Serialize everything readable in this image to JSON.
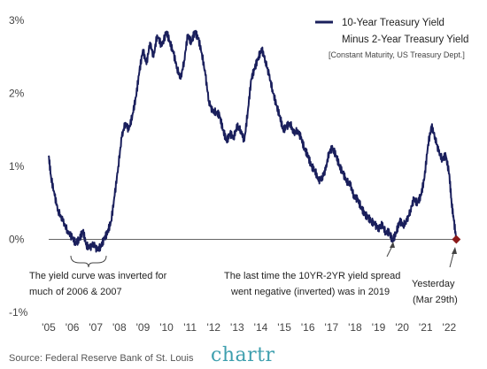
{
  "chart_data": {
    "type": "line",
    "legend": {
      "series_label_line1": "10-Year Treasury Yield",
      "series_label_line2": "Minus 2-Year Treasury Yield",
      "note": "[Constant Maturity, US Treasury Dept.]",
      "placement": "top-right"
    },
    "y_ticks": [
      "3%",
      "2%",
      "1%",
      "0%",
      "-1%"
    ],
    "y_tick_values": [
      3,
      2,
      1,
      0,
      -1
    ],
    "ylim": [
      -1.0,
      3.1
    ],
    "xlim": [
      2005.0,
      2022.4
    ],
    "x_ticks": [
      "'05",
      "'06",
      "'07",
      "'08",
      "'09",
      "'10",
      "'11",
      "'12",
      "'13",
      "'14",
      "'15",
      "'16",
      "'17",
      "'18",
      "'19",
      "'20",
      "'21",
      "'22"
    ],
    "x_tick_values": [
      2005,
      2006,
      2007,
      2008,
      2009,
      2010,
      2011,
      2012,
      2013,
      2014,
      2015,
      2016,
      2017,
      2018,
      2019,
      2020,
      2021,
      2022
    ],
    "grid": false,
    "zero_line": true,
    "series": [
      {
        "color": "#1a1f5c",
        "x": [
          2005.0,
          2005.1,
          2005.25,
          2005.4,
          2005.6,
          2005.8,
          2006.0,
          2006.15,
          2006.3,
          2006.45,
          2006.6,
          2006.75,
          2006.9,
          2007.05,
          2007.2,
          2007.35,
          2007.5,
          2007.65,
          2007.8,
          2007.95,
          2008.1,
          2008.25,
          2008.4,
          2008.55,
          2008.7,
          2008.85,
          2009.0,
          2009.15,
          2009.3,
          2009.45,
          2009.6,
          2009.8,
          2010.0,
          2010.15,
          2010.3,
          2010.45,
          2010.6,
          2010.75,
          2010.9,
          2011.05,
          2011.2,
          2011.35,
          2011.5,
          2011.65,
          2011.8,
          2011.95,
          2012.1,
          2012.25,
          2012.4,
          2012.55,
          2012.7,
          2012.85,
          2013.0,
          2013.15,
          2013.3,
          2013.45,
          2013.6,
          2013.75,
          2013.9,
          2014.05,
          2014.2,
          2014.35,
          2014.5,
          2014.65,
          2014.8,
          2014.95,
          2015.1,
          2015.25,
          2015.4,
          2015.55,
          2015.7,
          2015.85,
          2016.0,
          2016.15,
          2016.3,
          2016.45,
          2016.6,
          2016.75,
          2016.9,
          2017.05,
          2017.2,
          2017.35,
          2017.5,
          2017.65,
          2017.8,
          2017.95,
          2018.1,
          2018.25,
          2018.4,
          2018.55,
          2018.7,
          2018.85,
          2019.0,
          2019.15,
          2019.3,
          2019.45,
          2019.6,
          2019.75,
          2019.9,
          2020.05,
          2020.2,
          2020.35,
          2020.5,
          2020.65,
          2020.8,
          2020.95,
          2021.1,
          2021.25,
          2021.4,
          2021.55,
          2021.7,
          2021.85,
          2022.0,
          2022.1,
          2022.2,
          2022.3
        ],
        "values": [
          1.15,
          0.85,
          0.6,
          0.4,
          0.25,
          0.12,
          0.02,
          -0.05,
          0.0,
          0.12,
          -0.08,
          -0.12,
          -0.05,
          -0.15,
          -0.1,
          0.0,
          0.1,
          0.25,
          0.6,
          1.0,
          1.4,
          1.6,
          1.5,
          1.7,
          1.95,
          2.3,
          2.6,
          2.4,
          2.7,
          2.5,
          2.8,
          2.65,
          2.85,
          2.7,
          2.55,
          2.35,
          2.2,
          2.45,
          2.8,
          2.7,
          2.85,
          2.75,
          2.55,
          2.25,
          1.9,
          1.75,
          1.75,
          1.7,
          1.5,
          1.35,
          1.45,
          1.4,
          1.55,
          1.5,
          1.35,
          1.75,
          2.2,
          2.35,
          2.5,
          2.6,
          2.45,
          2.25,
          2.05,
          1.85,
          1.7,
          1.5,
          1.55,
          1.6,
          1.45,
          1.5,
          1.4,
          1.25,
          1.15,
          1.0,
          0.95,
          0.8,
          0.85,
          0.95,
          1.2,
          1.25,
          1.15,
          1.0,
          0.9,
          0.8,
          0.75,
          0.6,
          0.55,
          0.45,
          0.35,
          0.3,
          0.25,
          0.2,
          0.15,
          0.2,
          0.1,
          0.1,
          -0.02,
          0.1,
          0.25,
          0.2,
          0.25,
          0.4,
          0.55,
          0.5,
          0.6,
          0.85,
          1.3,
          1.55,
          1.4,
          1.2,
          1.1,
          1.15,
          0.9,
          0.5,
          0.25,
          0.0
        ]
      }
    ],
    "end_marker": {
      "x": 2022.3,
      "y": 0.0,
      "color": "#8b1a1a"
    },
    "annotations": [
      {
        "id": "inverted-2006",
        "lines": [
          "The yield curve was inverted for",
          "much of 2006 & 2007"
        ]
      },
      {
        "id": "negative-2019",
        "lines": [
          "The last time the 10YR-2YR yield spread",
          "went negative (inverted) was in 2019"
        ]
      },
      {
        "id": "yesterday",
        "lines": [
          "Yesterday",
          "(Mar 29th)"
        ]
      }
    ]
  },
  "footer": {
    "source": "Source:  Federal Reserve Bank of St. Louis",
    "brand": "chartr"
  }
}
